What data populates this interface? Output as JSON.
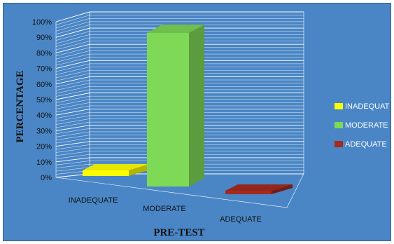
{
  "chart_data": {
    "type": "bar",
    "categories": [
      "INADEQUATE",
      "MODERATE",
      "ADEQUATE"
    ],
    "values": [
      2,
      100,
      0
    ],
    "colors": [
      "#ffff00",
      "#7ed957",
      "#a52a1e"
    ],
    "ylabel": "PERCENTAGE",
    "xlabel": "PRE-TEST",
    "ylim": [
      0,
      100
    ],
    "y_ticks": [
      "0%",
      "10%",
      "20%",
      "30%",
      "40%",
      "50%",
      "60%",
      "70%",
      "80%",
      "90%",
      "100%"
    ],
    "grid": true,
    "legend": {
      "placement": "right",
      "entries": [
        "INADEQUAT",
        "MODERATE",
        "ADEQUATE"
      ]
    },
    "background": "#4a86c5"
  }
}
